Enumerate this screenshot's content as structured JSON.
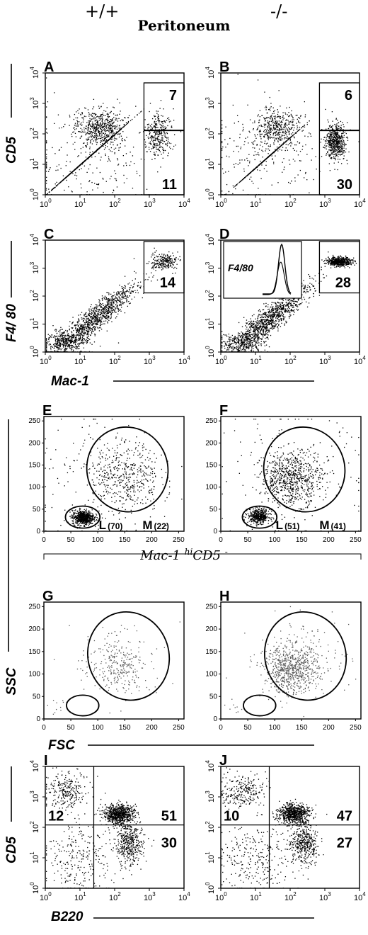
{
  "header": {
    "genotype_left": "+/+",
    "genotype_right": "-/-",
    "tissue": "Peritoneum"
  },
  "axis_labels": {
    "cd5": "CD5",
    "f480": "F4/ 80",
    "mac1": "Mac-1",
    "ssc": "SSC",
    "fsc": "FSC",
    "b220": "B220"
  },
  "gate_note": {
    "prefix": "Mac-1 ",
    "sup": "hi",
    "suffix": "CD5 ",
    "sup2": "-"
  },
  "inset_label": "F4/80",
  "log_ticks": [
    "10",
    "10",
    "10",
    "10",
    "10"
  ],
  "log_exps": [
    "0",
    "1",
    "2",
    "3",
    "4"
  ],
  "lin_ticks": [
    "0",
    "50",
    "100",
    "150",
    "200",
    "250"
  ],
  "chart_data": [
    {
      "panel": "A",
      "type": "scatter",
      "x_scale": "log",
      "y_scale": "log",
      "xlim": [
        1,
        10000
      ],
      "ylim": [
        1,
        10000
      ],
      "gate": {
        "x": [
          700,
          10000
        ],
        "y_split": 130
      },
      "gate_values": {
        "upper": "7",
        "lower": "11"
      }
    },
    {
      "panel": "B",
      "type": "scatter",
      "x_scale": "log",
      "y_scale": "log",
      "xlim": [
        1,
        10000
      ],
      "ylim": [
        1,
        10000
      ],
      "gate": {
        "x": [
          700,
          10000
        ],
        "y_split": 130
      },
      "gate_values": {
        "upper": "6",
        "lower": "30"
      }
    },
    {
      "panel": "C",
      "type": "scatter",
      "x_scale": "log",
      "y_scale": "log",
      "xlim": [
        1,
        10000
      ],
      "ylim": [
        1,
        10000
      ],
      "gate_values": {
        "box": "14"
      }
    },
    {
      "panel": "D",
      "type": "scatter",
      "x_scale": "log",
      "y_scale": "log",
      "xlim": [
        1,
        10000
      ],
      "ylim": [
        1,
        10000
      ],
      "gate_values": {
        "box": "28"
      }
    },
    {
      "panel": "E",
      "type": "scatter",
      "x_scale": "linear",
      "y_scale": "linear",
      "xlim": [
        0,
        260
      ],
      "ylim": [
        0,
        260
      ],
      "gates": [
        {
          "name": "L",
          "value": "(70)"
        },
        {
          "name": "M",
          "value": "(22)"
        }
      ]
    },
    {
      "panel": "F",
      "type": "scatter",
      "x_scale": "linear",
      "y_scale": "linear",
      "xlim": [
        0,
        260
      ],
      "ylim": [
        0,
        260
      ],
      "gates": [
        {
          "name": "L",
          "value": "(51)"
        },
        {
          "name": "M",
          "value": "(41)"
        }
      ]
    },
    {
      "panel": "G",
      "type": "scatter",
      "x_scale": "linear",
      "y_scale": "linear",
      "xlim": [
        0,
        260
      ],
      "ylim": [
        0,
        260
      ]
    },
    {
      "panel": "H",
      "type": "scatter",
      "x_scale": "linear",
      "y_scale": "linear",
      "xlim": [
        0,
        260
      ],
      "ylim": [
        0,
        260
      ]
    },
    {
      "panel": "I",
      "type": "scatter",
      "x_scale": "log",
      "y_scale": "log",
      "xlim": [
        1,
        10000
      ],
      "ylim": [
        1,
        10000
      ],
      "quadrant_values": {
        "upper_left": "12",
        "upper_right": "51",
        "lower_right": "30"
      }
    },
    {
      "panel": "J",
      "type": "scatter",
      "x_scale": "log",
      "y_scale": "log",
      "xlim": [
        1,
        10000
      ],
      "ylim": [
        1,
        10000
      ],
      "quadrant_values": {
        "upper_left": "10",
        "upper_right": "47",
        "lower_right": "27"
      }
    }
  ]
}
